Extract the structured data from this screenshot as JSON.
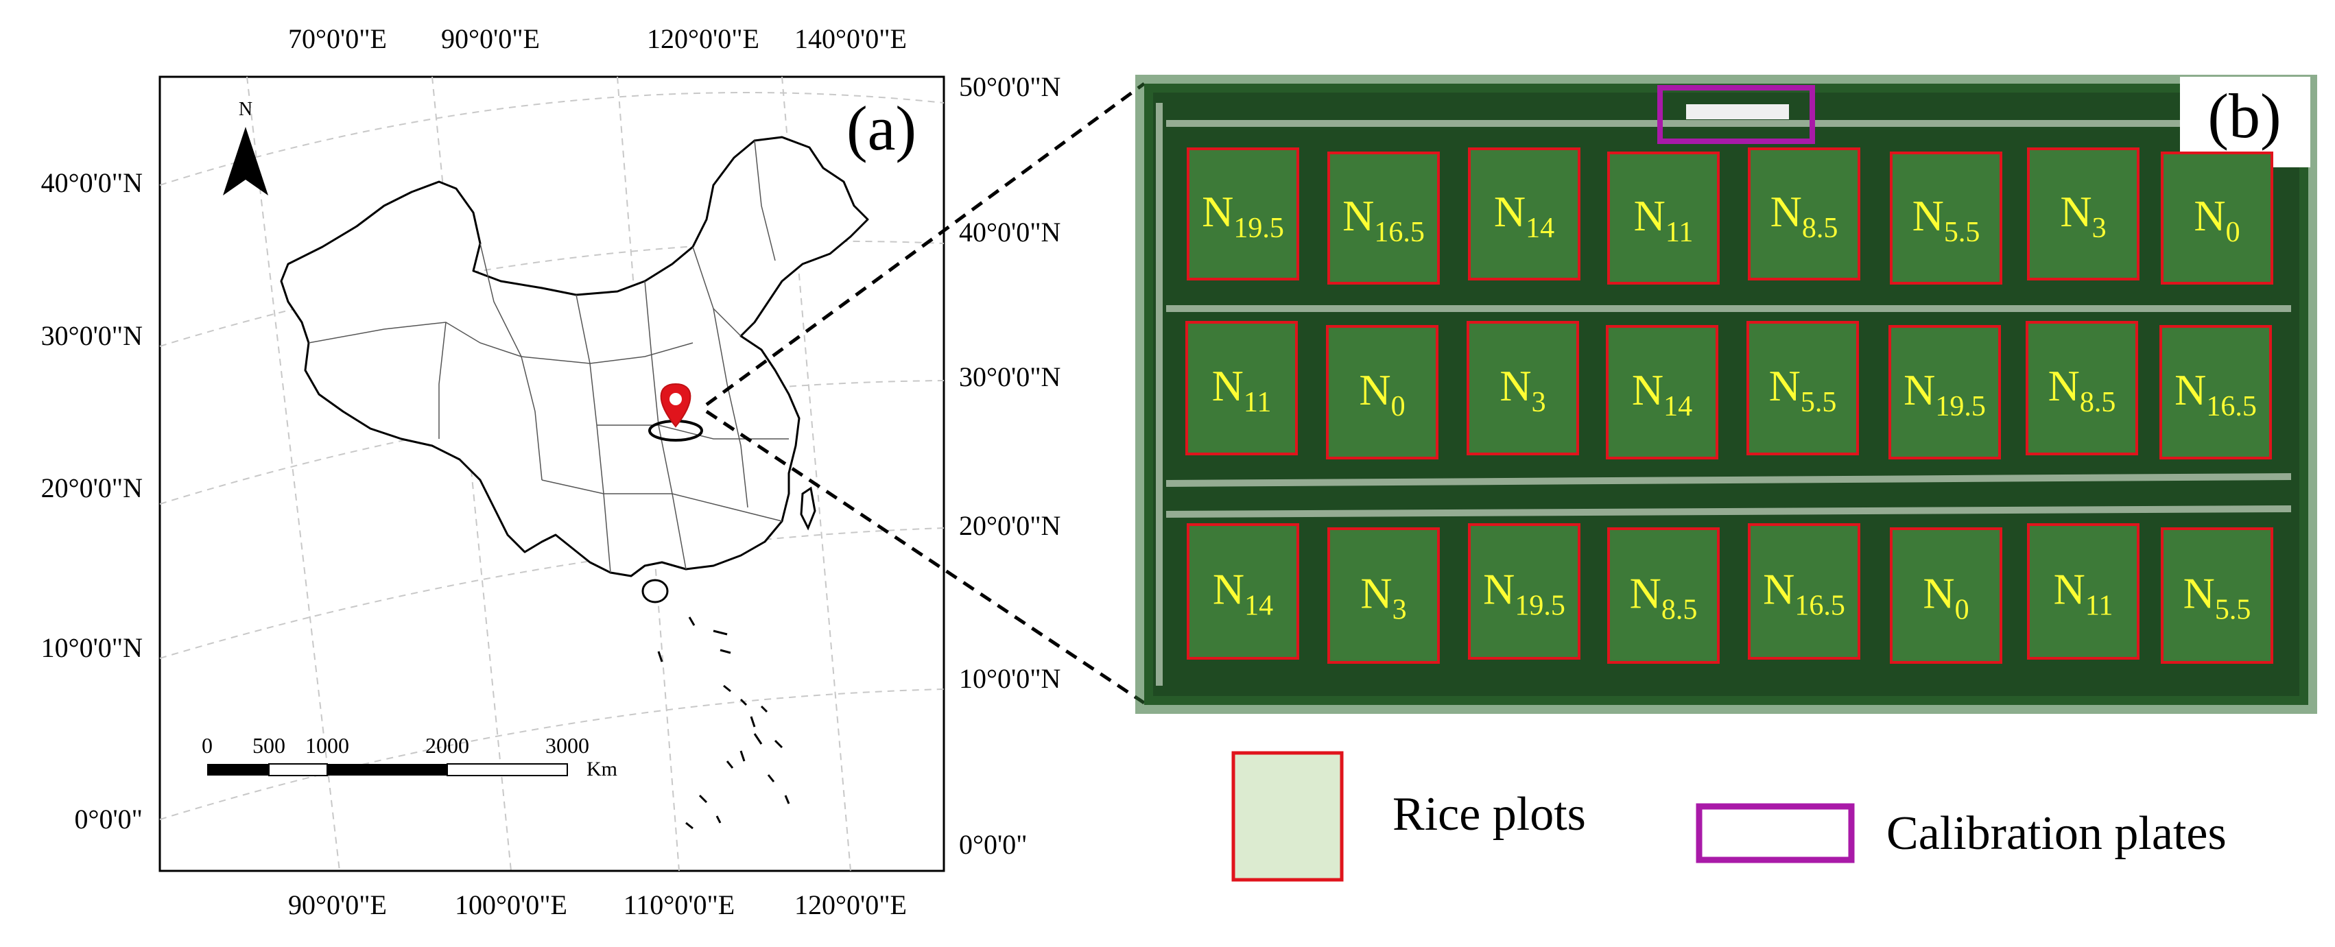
{
  "panel_a": {
    "label": "(a)",
    "north_label": "N",
    "top_ticks": [
      "70°0'0\"E",
      "90°0'0\"E",
      "120°0'0\"E",
      "140°0'0\"E"
    ],
    "bottom_ticks": [
      "90°0'0\"E",
      "100°0'0\"E",
      "110°0'0\"E",
      "120°0'0\"E"
    ],
    "left_ticks": [
      "40°0'0\"N",
      "30°0'0\"N",
      "20°0'0\"N",
      "10°0'0\"N",
      "0°0'0\""
    ],
    "right_ticks": [
      "50°0'0\"N",
      "40°0'0\"N",
      "30°0'0\"N",
      "20°0'0\"N",
      "10°0'0\"N",
      "0°0'0\""
    ],
    "scale_bar": {
      "ticks": [
        "0",
        "500",
        "1000",
        "2000",
        "3000"
      ],
      "unit": "Km"
    },
    "marker_icon": "location-pin-icon"
  },
  "panel_b": {
    "label": "(b)",
    "plot_border_color": "#e0141c",
    "calibration_color": "#a91aa8",
    "rows": [
      [
        {
          "base": "N",
          "sub": "19.5"
        },
        {
          "base": "N",
          "sub": "16.5"
        },
        {
          "base": "N",
          "sub": "14"
        },
        {
          "base": "N",
          "sub": "11"
        },
        {
          "base": "N",
          "sub": "8.5"
        },
        {
          "base": "N",
          "sub": "5.5"
        },
        {
          "base": "N",
          "sub": "3"
        },
        {
          "base": "N",
          "sub": "0"
        }
      ],
      [
        {
          "base": "N",
          "sub": "11"
        },
        {
          "base": "N",
          "sub": "0"
        },
        {
          "base": "N",
          "sub": "3"
        },
        {
          "base": "N",
          "sub": "14"
        },
        {
          "base": "N",
          "sub": "5.5"
        },
        {
          "base": "N",
          "sub": "19.5"
        },
        {
          "base": "N",
          "sub": "8.5"
        },
        {
          "base": "N",
          "sub": "16.5"
        }
      ],
      [
        {
          "base": "N",
          "sub": "14"
        },
        {
          "base": "N",
          "sub": "3"
        },
        {
          "base": "N",
          "sub": "19.5"
        },
        {
          "base": "N",
          "sub": "8.5"
        },
        {
          "base": "N",
          "sub": "16.5"
        },
        {
          "base": "N",
          "sub": "0"
        },
        {
          "base": "N",
          "sub": "11"
        },
        {
          "base": "N",
          "sub": "5.5"
        }
      ]
    ]
  },
  "legend": {
    "rice_plots": "Rice plots",
    "calibration_plates": "Calibration plates"
  }
}
